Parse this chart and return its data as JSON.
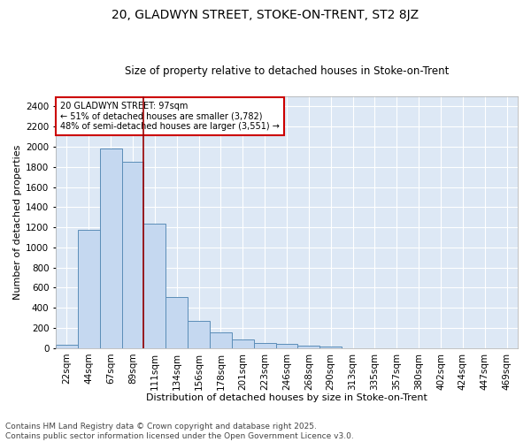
{
  "title_line1": "20, GLADWYN STREET, STOKE-ON-TRENT, ST2 8JZ",
  "title_line2": "Size of property relative to detached houses in Stoke-on-Trent",
  "xlabel": "Distribution of detached houses by size in Stoke-on-Trent",
  "ylabel": "Number of detached properties",
  "categories": [
    "22sqm",
    "44sqm",
    "67sqm",
    "89sqm",
    "111sqm",
    "134sqm",
    "156sqm",
    "178sqm",
    "201sqm",
    "223sqm",
    "246sqm",
    "268sqm",
    "290sqm",
    "313sqm",
    "335sqm",
    "357sqm",
    "380sqm",
    "402sqm",
    "424sqm",
    "447sqm",
    "469sqm"
  ],
  "values": [
    30,
    1175,
    1980,
    1850,
    1240,
    510,
    270,
    155,
    88,
    48,
    40,
    22,
    15,
    0,
    0,
    0,
    0,
    0,
    0,
    0,
    0
  ],
  "bar_color": "#c5d8f0",
  "bar_edge_color": "#5b8db8",
  "bg_color": "#dde8f5",
  "grid_color": "#ffffff",
  "vline_x_index": 3.5,
  "vline_color": "#990000",
  "annotation_text": "20 GLADWYN STREET: 97sqm\n← 51% of detached houses are smaller (3,782)\n48% of semi-detached houses are larger (3,551) →",
  "annotation_box_color": "#cc0000",
  "ylim": [
    0,
    2500
  ],
  "yticks": [
    0,
    200,
    400,
    600,
    800,
    1000,
    1200,
    1400,
    1600,
    1800,
    2000,
    2200,
    2400
  ],
  "footnote": "Contains HM Land Registry data © Crown copyright and database right 2025.\nContains public sector information licensed under the Open Government Licence v3.0.",
  "title_fontsize": 10,
  "subtitle_fontsize": 8.5,
  "axis_label_fontsize": 8,
  "tick_fontsize": 7.5,
  "annotation_fontsize": 7,
  "footnote_fontsize": 6.5
}
